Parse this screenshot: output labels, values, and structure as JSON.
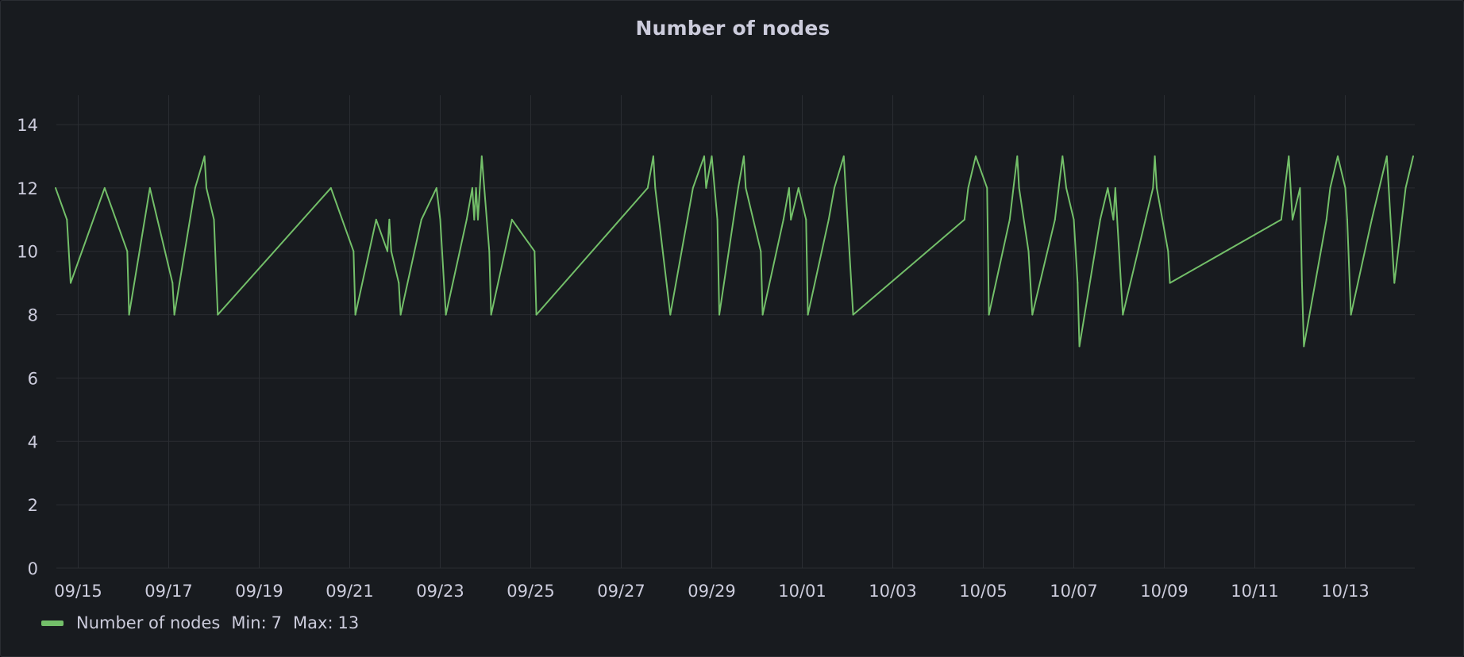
{
  "panel": {
    "title": "Number of nodes"
  },
  "colors": {
    "series": "#73bf69",
    "grid": "#2a2d32",
    "text": "#ccccdc",
    "background": "#181b1f"
  },
  "legend": {
    "name": "Number of nodes",
    "min_label": "Min:",
    "min_value": "7",
    "max_label": "Max:",
    "max_value": "13",
    "placement": "bottom-left"
  },
  "chart_data": {
    "type": "line",
    "title": "Number of nodes",
    "xlabel": "",
    "ylabel": "",
    "ylim": [
      0,
      14
    ],
    "xlim": [
      "09/14 12:00",
      "10/14 12:00"
    ],
    "grid": true,
    "x_ticks": [
      "09/15",
      "09/17",
      "09/19",
      "09/21",
      "09/23",
      "09/25",
      "09/27",
      "09/29",
      "10/01",
      "10/03",
      "10/05",
      "10/07",
      "10/09",
      "10/11",
      "10/13"
    ],
    "y_ticks": [
      "0",
      "2",
      "4",
      "6",
      "8",
      "10",
      "12",
      "14"
    ],
    "series": [
      {
        "name": "Number of nodes",
        "points": [
          [
            "09/14 12:00",
            12
          ],
          [
            "09/14 18:00",
            11
          ],
          [
            "09/14 20:00",
            9
          ],
          [
            "09/15 14:00",
            12
          ],
          [
            "09/16 02:00",
            10
          ],
          [
            "09/16 03:00",
            8
          ],
          [
            "09/16 14:00",
            12
          ],
          [
            "09/17 02:00",
            9
          ],
          [
            "09/17 03:00",
            8
          ],
          [
            "09/17 14:00",
            12
          ],
          [
            "09/17 19:00",
            13
          ],
          [
            "09/17 20:00",
            12
          ],
          [
            "09/18 00:00",
            11
          ],
          [
            "09/18 02:00",
            8
          ],
          [
            "09/20 14:00",
            12
          ],
          [
            "09/21 02:00",
            10
          ],
          [
            "09/21 03:00",
            8
          ],
          [
            "09/21 14:00",
            11
          ],
          [
            "09/21 20:00",
            10
          ],
          [
            "09/21 21:00",
            11
          ],
          [
            "09/21 22:00",
            10
          ],
          [
            "09/22 02:00",
            9
          ],
          [
            "09/22 03:00",
            8
          ],
          [
            "09/22 14:00",
            11
          ],
          [
            "09/22 22:00",
            12
          ],
          [
            "09/23 00:00",
            11
          ],
          [
            "09/23 03:00",
            8
          ],
          [
            "09/23 14:00",
            11
          ],
          [
            "09/23 17:00",
            12
          ],
          [
            "09/23 18:00",
            11
          ],
          [
            "09/23 19:00",
            12
          ],
          [
            "09/23 20:00",
            11
          ],
          [
            "09/23 21:00",
            12
          ],
          [
            "09/23 22:00",
            13
          ],
          [
            "09/24 02:00",
            10
          ],
          [
            "09/24 03:00",
            8
          ],
          [
            "09/24 14:00",
            11
          ],
          [
            "09/25 02:00",
            10
          ],
          [
            "09/25 03:00",
            8
          ],
          [
            "09/27 14:00",
            12
          ],
          [
            "09/27 17:00",
            13
          ],
          [
            "09/27 18:00",
            12
          ],
          [
            "09/28 02:00",
            8
          ],
          [
            "09/28 14:00",
            12
          ],
          [
            "09/28 20:00",
            13
          ],
          [
            "09/28 21:00",
            12
          ],
          [
            "09/29 00:00",
            13
          ],
          [
            "09/29 03:00",
            11
          ],
          [
            "09/29 04:00",
            8
          ],
          [
            "09/29 14:00",
            12
          ],
          [
            "09/29 17:00",
            13
          ],
          [
            "09/29 18:00",
            12
          ],
          [
            "09/30 02:00",
            10
          ],
          [
            "09/30 03:00",
            8
          ],
          [
            "09/30 14:00",
            11
          ],
          [
            "09/30 17:00",
            12
          ],
          [
            "09/30 18:00",
            11
          ],
          [
            "09/30 22:00",
            12
          ],
          [
            "10/01 02:00",
            11
          ],
          [
            "10/01 03:00",
            8
          ],
          [
            "10/01 14:00",
            11
          ],
          [
            "10/01 17:00",
            12
          ],
          [
            "10/01 22:00",
            13
          ],
          [
            "10/02 03:00",
            8
          ],
          [
            "10/04 14:00",
            11
          ],
          [
            "10/04 16:00",
            12
          ],
          [
            "10/04 20:00",
            13
          ],
          [
            "10/05 02:00",
            12
          ],
          [
            "10/05 03:00",
            8
          ],
          [
            "10/05 14:00",
            11
          ],
          [
            "10/05 16:00",
            12
          ],
          [
            "10/05 18:00",
            13
          ],
          [
            "10/05 19:00",
            12
          ],
          [
            "10/06 00:00",
            10
          ],
          [
            "10/06 02:00",
            8
          ],
          [
            "10/06 14:00",
            11
          ],
          [
            "10/06 16:00",
            12
          ],
          [
            "10/06 18:00",
            13
          ],
          [
            "10/06 20:00",
            12
          ],
          [
            "10/07 00:00",
            11
          ],
          [
            "10/07 02:00",
            9
          ],
          [
            "10/07 03:00",
            7
          ],
          [
            "10/07 14:00",
            11
          ],
          [
            "10/07 18:00",
            12
          ],
          [
            "10/07 21:00",
            11
          ],
          [
            "10/07 22:00",
            12
          ],
          [
            "10/08 02:00",
            8
          ],
          [
            "10/08 14:00",
            11
          ],
          [
            "10/08 18:00",
            12
          ],
          [
            "10/08 19:00",
            13
          ],
          [
            "10/08 20:00",
            12
          ],
          [
            "10/09 02:00",
            10
          ],
          [
            "10/09 03:00",
            9
          ],
          [
            "10/11 14:00",
            11
          ],
          [
            "10/11 16:00",
            12
          ],
          [
            "10/11 18:00",
            13
          ],
          [
            "10/11 20:00",
            11
          ],
          [
            "10/12 00:00",
            12
          ],
          [
            "10/12 01:00",
            9
          ],
          [
            "10/12 02:00",
            7
          ],
          [
            "10/12 14:00",
            11
          ],
          [
            "10/12 16:00",
            12
          ],
          [
            "10/12 20:00",
            13
          ],
          [
            "10/13 00:00",
            12
          ],
          [
            "10/13 01:00",
            11
          ],
          [
            "10/13 03:00",
            8
          ],
          [
            "10/13 14:00",
            11
          ],
          [
            "10/13 18:00",
            12
          ],
          [
            "10/13 22:00",
            13
          ],
          [
            "10/14 02:00",
            9
          ],
          [
            "10/14 08:00",
            12
          ],
          [
            "10/14 12:00",
            13
          ]
        ]
      }
    ]
  }
}
